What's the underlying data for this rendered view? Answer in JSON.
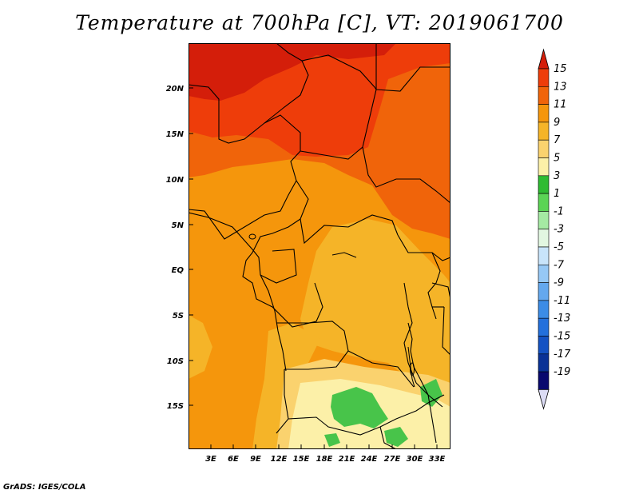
{
  "title": "Temperature at 700hPa [C], VT: 2019061700",
  "credit": "GrADS: IGES/COLA",
  "lat_labels": [
    "20N",
    "15N",
    "10N",
    "5N",
    "EQ",
    "5S",
    "10S",
    "15S"
  ],
  "lon_labels": [
    "3E",
    "6E",
    "9E",
    "12E",
    "15E",
    "18E",
    "21E",
    "24E",
    "27E",
    "30E",
    "33E"
  ],
  "colorbar": {
    "labels": [
      "15",
      "13",
      "11",
      "9",
      "7",
      "5",
      "3",
      "1",
      "-1",
      "-3",
      "-5",
      "-7",
      "-9",
      "-11",
      "-13",
      "-15",
      "-17",
      "-19"
    ],
    "colors": [
      "#d41e0a",
      "#ee3d0a",
      "#f0640a",
      "#f5960c",
      "#f5b428",
      "#fad26e",
      "#fcf0a8",
      "#2fbb32",
      "#5bd455",
      "#a5eaa3",
      "#e2f7e1",
      "#c8e4fa",
      "#96c8f5",
      "#64a8ee",
      "#3c8ce6",
      "#2370dc",
      "#1452c3",
      "#0a3296",
      "#08086e"
    ],
    "max_arrow_color": "#d41e0a",
    "min_arrow_color": "#dcdcf5"
  },
  "map_colors": {
    "13_15": "#d41e0a",
    "11_13": "#ee3d0a",
    "9_11": "#f0640a",
    "7_9": "#f5960c",
    "5_7": "#f5b428",
    "3_5": "#fad26e",
    "1_3": "#fcf0a8",
    "m1_1": "#48c44a"
  }
}
